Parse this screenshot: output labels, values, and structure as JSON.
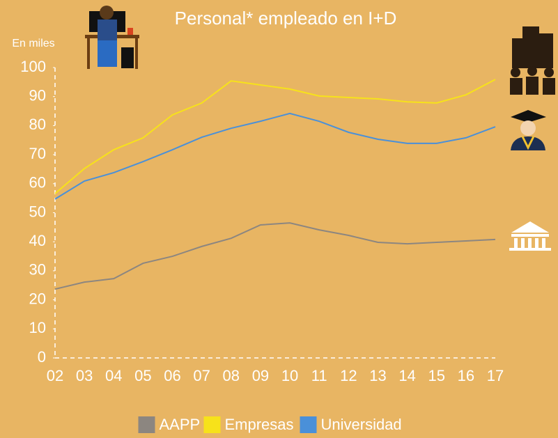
{
  "chart_data": {
    "type": "line",
    "title": "Personal* empleado en I+D",
    "y_label": "En miles",
    "categories": [
      "02",
      "03",
      "04",
      "05",
      "06",
      "07",
      "08",
      "09",
      "10",
      "11",
      "12",
      "13",
      "14",
      "15",
      "16",
      "17"
    ],
    "series": [
      {
        "name": "AAPP",
        "color": "#8c8680",
        "values": [
          23.7,
          26.1,
          27.3,
          32.6,
          35,
          38.4,
          41.2,
          45.8,
          46.5,
          44.1,
          42.2,
          39.8,
          39.3,
          39.8,
          40.3,
          40.8
        ]
      },
      {
        "name": "Empresas",
        "color": "#f7e21a",
        "values": [
          56.6,
          65.2,
          71.7,
          75.8,
          83.7,
          87.8,
          95.4,
          94,
          92.6,
          90.2,
          89.7,
          89.2,
          88.2,
          87.8,
          90.6,
          95.9
        ]
      },
      {
        "name": "Universidad",
        "color": "#4a90d9",
        "values": [
          54.7,
          60.9,
          63.8,
          67.6,
          71.7,
          76,
          79.1,
          81.5,
          84.2,
          81.5,
          77.7,
          75.3,
          73.9,
          73.9,
          75.8,
          79.6
        ]
      }
    ],
    "ylim": [
      0,
      100
    ],
    "yticks": [
      0,
      10,
      20,
      30,
      40,
      50,
      60,
      70,
      80,
      90,
      100
    ],
    "legend": "bottom"
  }
}
